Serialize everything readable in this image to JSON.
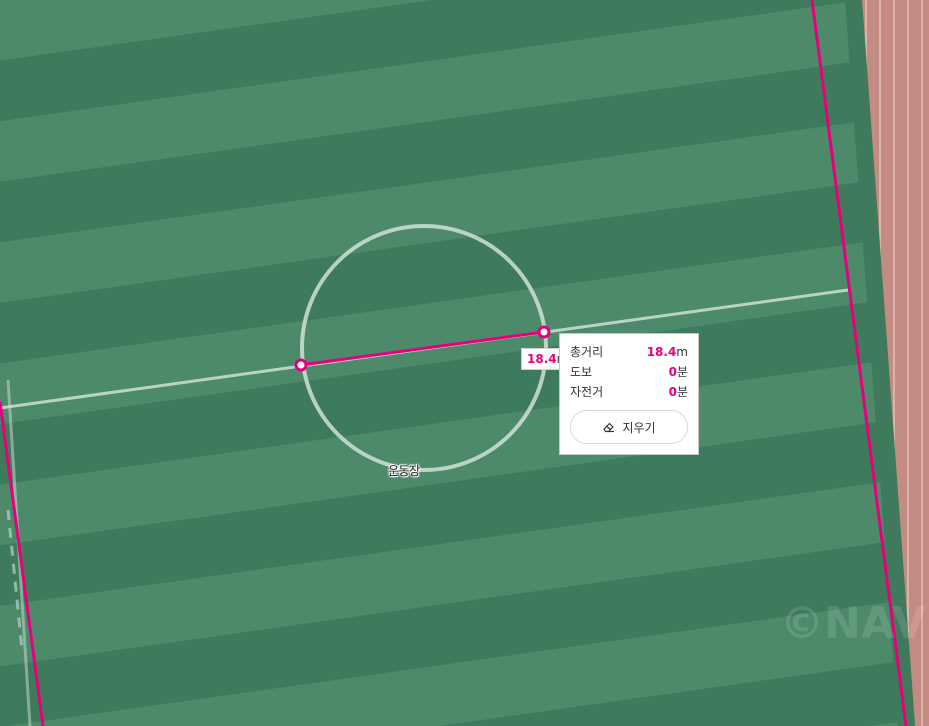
{
  "map": {
    "place_label": "운동장",
    "watermark": "©NAVER",
    "colors": {
      "measure_line": "#e6007e",
      "field_light": "#4e8e6e",
      "field_dark": "#3f7c5e",
      "track": "#c98f85"
    }
  },
  "measure": {
    "segment_label_value": "18.4",
    "segment_label_unit": "m",
    "info": {
      "total_label": "총거리",
      "total_value": "18.4",
      "total_unit": "m",
      "walk_label": "도보",
      "walk_value": "0",
      "walk_unit": "분",
      "bike_label": "자전거",
      "bike_value": "0",
      "bike_unit": "분",
      "erase_label": "지우기",
      "erase_icon": "eraser-icon"
    }
  }
}
